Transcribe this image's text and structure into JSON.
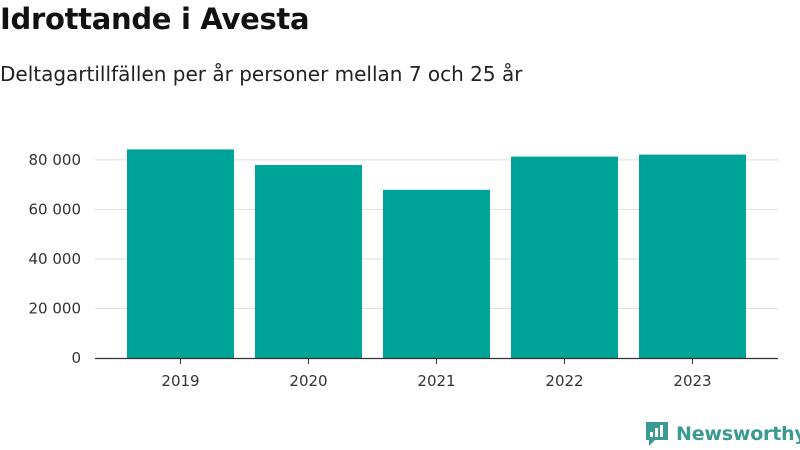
{
  "header": {
    "title": "Idrottande i Avesta",
    "subtitle": "Deltagartillfällen per år personer mellan 7 och 25 år"
  },
  "brand": {
    "name": "Newsworthy",
    "color": "#3a9a92",
    "icon": "newsworthy-logo-icon"
  },
  "chart_data": {
    "type": "bar",
    "categories": [
      "2019",
      "2020",
      "2021",
      "2022",
      "2023"
    ],
    "values": [
      84200,
      77900,
      67900,
      81300,
      82100
    ],
    "y_ticks": [
      0,
      20000,
      40000,
      60000,
      80000
    ],
    "y_tick_labels": [
      "0",
      "20 000",
      "40 000",
      "60 000",
      "80 000"
    ],
    "ylim": [
      0,
      88000
    ],
    "bar_color": "#00a398",
    "grid": true,
    "legend": "none"
  }
}
